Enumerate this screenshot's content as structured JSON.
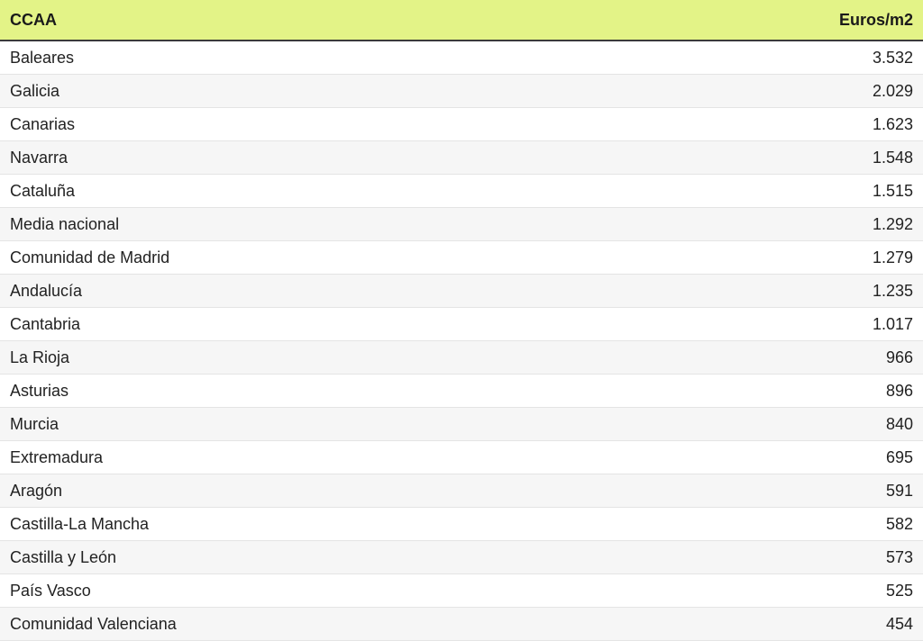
{
  "table": {
    "headers": {
      "region": "CCAA",
      "price": "Euros/m2"
    },
    "header_color": "#e3f387",
    "rows": [
      {
        "region": "Baleares",
        "price": "3.532"
      },
      {
        "region": "Galicia",
        "price": "2.029"
      },
      {
        "region": "Canarias",
        "price": "1.623"
      },
      {
        "region": "Navarra",
        "price": "1.548"
      },
      {
        "region": "Cataluña",
        "price": "1.515"
      },
      {
        "region": "Media nacional",
        "price": "1.292"
      },
      {
        "region": "Comunidad de Madrid",
        "price": "1.279"
      },
      {
        "region": "Andalucía",
        "price": "1.235"
      },
      {
        "region": "Cantabria",
        "price": "1.017"
      },
      {
        "region": "La Rioja",
        "price": "966"
      },
      {
        "region": "Asturias",
        "price": "896"
      },
      {
        "region": "Murcia",
        "price": "840"
      },
      {
        "region": "Extremadura",
        "price": "695"
      },
      {
        "region": "Aragón",
        "price": "591"
      },
      {
        "region": "Castilla-La Mancha",
        "price": "582"
      },
      {
        "region": "Castilla y León",
        "price": "573"
      },
      {
        "region": "País Vasco",
        "price": "525"
      },
      {
        "region": "Comunidad Valenciana",
        "price": "454"
      }
    ]
  }
}
